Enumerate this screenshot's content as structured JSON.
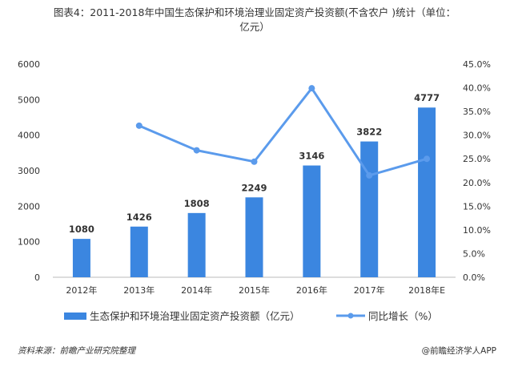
{
  "chart_data": {
    "type": "bar+line",
    "title_line1": "图表4：2011-2018年中国生态保护和环境治理业固定资产投资额(不含农户 )统计（单位：",
    "title_line2": "亿元）",
    "categories": [
      "2012年",
      "2013年",
      "2014年",
      "2015年",
      "2016年",
      "2017年",
      "2018年E"
    ],
    "series": [
      {
        "name": "生态保护和环境治理业固定资产投资额（亿元）",
        "type": "bar",
        "axis": "left",
        "color": "#3b86e0",
        "values": [
          1080,
          1426,
          1808,
          2249,
          3146,
          3822,
          4777
        ]
      },
      {
        "name": "同比增长（%）",
        "type": "line",
        "axis": "right",
        "color": "#5b9bec",
        "values": [
          null,
          32.0,
          26.8,
          24.4,
          39.9,
          21.5,
          25.0
        ]
      }
    ],
    "left_axis": {
      "min": 0,
      "max": 6000,
      "ticks": [
        "0",
        "1000",
        "2000",
        "3000",
        "4000",
        "5000",
        "6000"
      ]
    },
    "right_axis": {
      "min": 0,
      "max": 45,
      "ticks": [
        "0.0%",
        "5.0%",
        "10.0%",
        "15.0%",
        "20.0%",
        "25.0%",
        "30.0%",
        "35.0%",
        "40.0%",
        "45.0%"
      ]
    },
    "legend_position": "bottom",
    "grid": false
  },
  "footer": {
    "source": "资料来源：前瞻产业研究院整理",
    "brand": "@前瞻经济学人APP"
  },
  "watermark": "前瞻产业研究院"
}
